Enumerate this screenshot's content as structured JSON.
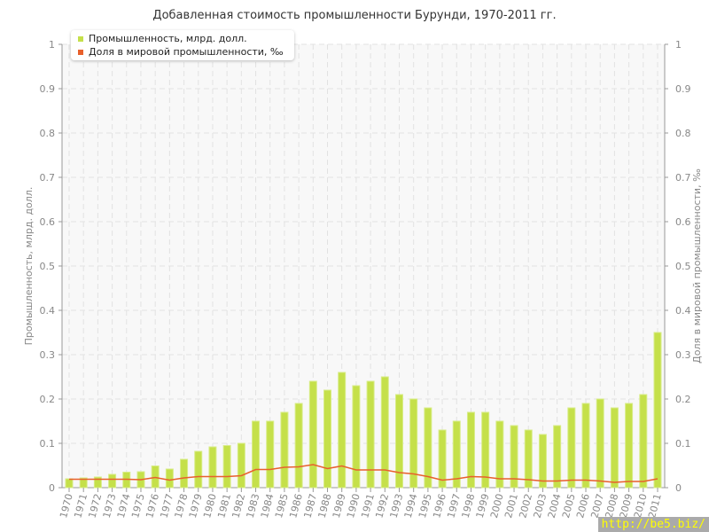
{
  "chart_data": {
    "type": "bar",
    "title": "Добавленная стоимость промышленности Бурунди, 1970-2011 гг.",
    "ylabel_left": "Промышленность, млрд. долл.",
    "ylabel_right": "Доля в мировой промышленности, ‰",
    "ylim": [
      0,
      1
    ],
    "yticks": [
      "0",
      "0.1",
      "0.2",
      "0.3",
      "0.4",
      "0.5",
      "0.6",
      "0.7",
      "0.8",
      "0.9",
      "1"
    ],
    "grid": true,
    "legend_position": "top-left",
    "categories": [
      "1970",
      "1971",
      "1972",
      "1973",
      "1974",
      "1975",
      "1976",
      "1977",
      "1978",
      "1979",
      "1980",
      "1981",
      "1982",
      "1983",
      "1984",
      "1985",
      "1986",
      "1987",
      "1988",
      "1989",
      "1990",
      "1991",
      "1992",
      "1993",
      "1994",
      "1995",
      "1996",
      "1997",
      "1998",
      "1999",
      "2000",
      "2001",
      "2002",
      "2003",
      "2004",
      "2005",
      "2006",
      "2007",
      "2008",
      "2009",
      "2010",
      "2011"
    ],
    "series": [
      {
        "name": "Промышленность, млрд. долл.",
        "type": "bar",
        "color": "#c5e04a",
        "values": [
          0.02,
          0.022,
          0.024,
          0.03,
          0.035,
          0.036,
          0.049,
          0.042,
          0.064,
          0.082,
          0.092,
          0.095,
          0.1,
          0.15,
          0.15,
          0.17,
          0.19,
          0.24,
          0.22,
          0.26,
          0.23,
          0.24,
          0.25,
          0.21,
          0.2,
          0.18,
          0.13,
          0.15,
          0.17,
          0.17,
          0.15,
          0.14,
          0.13,
          0.12,
          0.14,
          0.18,
          0.19,
          0.2,
          0.18,
          0.19,
          0.21,
          0.35
        ]
      },
      {
        "name": "Доля в мировой промышленности, ‰",
        "type": "line",
        "color": "#e8602c",
        "values": [
          0.019,
          0.019,
          0.019,
          0.019,
          0.019,
          0.018,
          0.023,
          0.017,
          0.022,
          0.025,
          0.025,
          0.025,
          0.027,
          0.041,
          0.041,
          0.046,
          0.047,
          0.052,
          0.043,
          0.049,
          0.04,
          0.04,
          0.04,
          0.034,
          0.031,
          0.025,
          0.017,
          0.02,
          0.025,
          0.024,
          0.02,
          0.02,
          0.018,
          0.015,
          0.015,
          0.017,
          0.017,
          0.015,
          0.012,
          0.014,
          0.014,
          0.02
        ]
      }
    ]
  },
  "watermark": "http://be5.biz/"
}
